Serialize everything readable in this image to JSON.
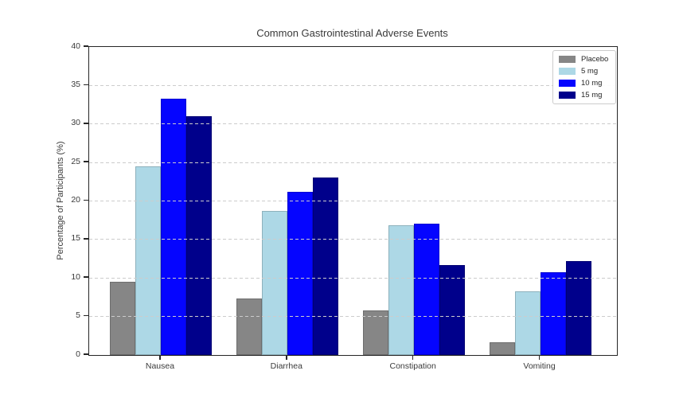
{
  "chart_data": {
    "type": "bar",
    "title": "Common Gastrointestinal Adverse Events",
    "xlabel": "",
    "ylabel": "Percentage of Participants (%)",
    "ylim": [
      0,
      40
    ],
    "yticks": [
      0,
      5,
      10,
      15,
      20,
      25,
      30,
      35,
      40
    ],
    "grid": "horizontal dashed gridlines, drawn over bars",
    "legend_position": "upper right",
    "categories": [
      "Nausea",
      "Diarrhea",
      "Constipation",
      "Vomiting"
    ],
    "series": [
      {
        "name": "Placebo",
        "color": "#868686",
        "values": [
          9.5,
          7.3,
          5.8,
          1.7
        ]
      },
      {
        "name": "5 mg",
        "color": "#add8e6",
        "values": [
          24.5,
          18.7,
          16.8,
          8.3
        ]
      },
      {
        "name": "10 mg",
        "color": "#0505ff",
        "values": [
          33.3,
          21.2,
          17.1,
          10.7
        ]
      },
      {
        "name": "15 mg",
        "color": "#00008b",
        "values": [
          31.0,
          23.0,
          11.7,
          12.2
        ]
      }
    ]
  },
  "colors": {
    "background": "#ffffff",
    "spine": "#262626",
    "gridline": "#cccccc",
    "text": "#3a3a3a"
  }
}
